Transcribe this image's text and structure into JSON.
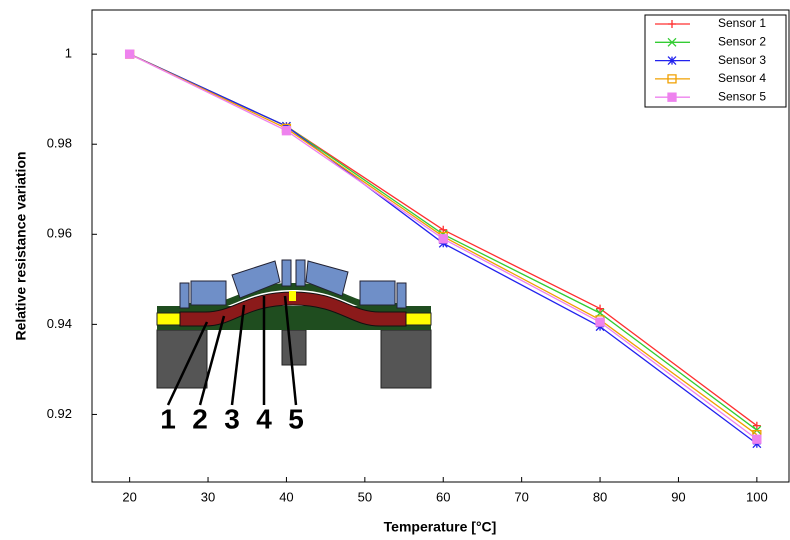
{
  "chart_data": {
    "type": "line",
    "x_label": "Temperature [°C]",
    "y_label": "Relative resistance variation",
    "x": [
      20,
      40,
      60,
      80,
      100
    ],
    "series": [
      {
        "name": "Sensor 1",
        "color": "#ff3030",
        "marker": "plus",
        "values": [
          1,
          0.984,
          0.961,
          0.9435,
          0.9175
        ]
      },
      {
        "name": "Sensor 2",
        "color": "#33cc33",
        "marker": "x",
        "values": [
          1,
          0.984,
          0.96,
          0.9425,
          0.9165
        ]
      },
      {
        "name": "Sensor 3",
        "color": "#2222ee",
        "marker": "asterisk",
        "values": [
          1,
          0.984,
          0.958,
          0.9395,
          0.9135
        ]
      },
      {
        "name": "Sensor 4",
        "color": "#f0a000",
        "marker": "square-open",
        "values": [
          1,
          0.9835,
          0.9595,
          0.941,
          0.9155
        ]
      },
      {
        "name": "Sensor 5",
        "color": "#ee82ee",
        "marker": "square-filled",
        "values": [
          1,
          0.983,
          0.959,
          0.9405,
          0.9145
        ]
      }
    ],
    "xlim": [
      15.2,
      104.1
    ],
    "ylim": [
      0.905,
      1.0098
    ],
    "xticks": [
      20,
      30,
      40,
      50,
      60,
      70,
      80,
      90,
      100
    ],
    "yticks": [
      0.92,
      0.94,
      0.96,
      0.98,
      1
    ],
    "legend": "top-right",
    "annotations": [
      "1",
      "2",
      "3",
      "4",
      "5"
    ]
  }
}
